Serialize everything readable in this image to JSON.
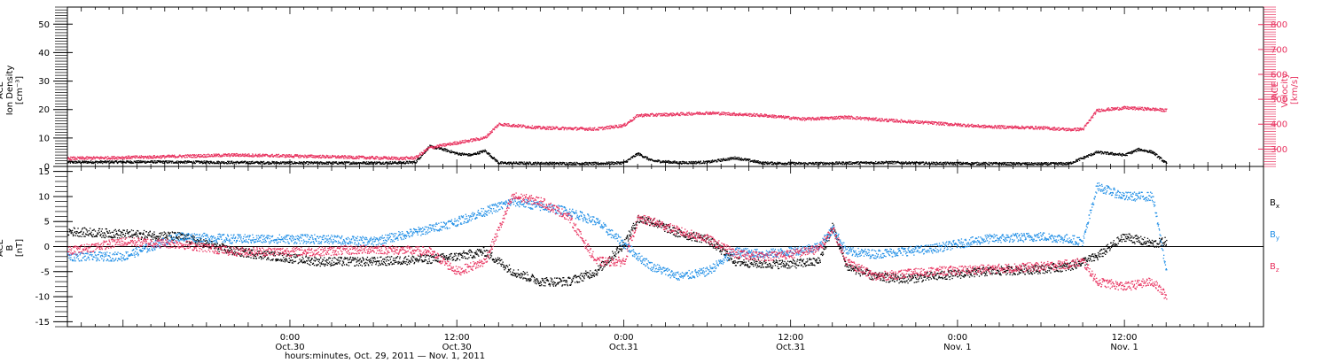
{
  "colors": {
    "black": "#000000",
    "blue": "#1f8ee6",
    "red": "#e8325f"
  },
  "xaxis": {
    "label": "hours:minutes, Oct. 29, 2011 — Nov.  1, 2011",
    "range": [
      "2011-10-29T08:00",
      "2011-11-01T22:00"
    ],
    "ticks": [
      {
        "t": "2011-10-30T00:00",
        "time": "0:00",
        "date": "Oct.30"
      },
      {
        "t": "2011-10-30T12:00",
        "time": "12:00",
        "date": "Oct.30"
      },
      {
        "t": "2011-10-31T00:00",
        "time": "0:00",
        "date": "Oct.31"
      },
      {
        "t": "2011-10-31T12:00",
        "time": "12:00",
        "date": "Oct.31"
      },
      {
        "t": "2011-11-01T00:00",
        "time": "0:00",
        "date": "Nov. 1"
      },
      {
        "t": "2011-11-01T12:00",
        "time": "12:00",
        "date": "Nov. 1"
      }
    ]
  },
  "chart_data": [
    {
      "type": "scatter",
      "panel": "top",
      "ylabel_left": [
        "ACE",
        "Ion Density",
        "[cm⁻³]"
      ],
      "ylabel_right": [
        "ACE",
        "Velocity",
        "[km/s]"
      ],
      "ylim_left": [
        0,
        56
      ],
      "ylim_right": [
        230,
        870
      ],
      "yticks_left": [
        0,
        10,
        20,
        30,
        40,
        50
      ],
      "yticks_right": [
        300,
        400,
        500,
        600,
        700,
        800
      ],
      "series": [
        {
          "color": "black",
          "axis": "left",
          "x": [
            "2011-10-29T08:00",
            "2011-10-29T14:00",
            "2011-10-29T20:00",
            "2011-10-30T02:00",
            "2011-10-30T08:00",
            "2011-10-30T09:00",
            "2011-10-30T10:00",
            "2011-10-30T11:00",
            "2011-10-30T12:00",
            "2011-10-30T13:00",
            "2011-10-30T14:00",
            "2011-10-30T15:00",
            "2011-10-30T18:00",
            "2011-10-30T22:00",
            "2011-10-31T00:00",
            "2011-10-31T01:00",
            "2011-10-31T02:00",
            "2011-10-31T04:00",
            "2011-10-31T06:00",
            "2011-10-31T08:00",
            "2011-10-31T10:00",
            "2011-10-31T13:00",
            "2011-10-31T16:00",
            "2011-10-31T19:00",
            "2011-10-31T22:00",
            "2011-11-01T02:00",
            "2011-11-01T06:00",
            "2011-11-01T08:00",
            "2011-11-01T09:00",
            "2011-11-01T10:00",
            "2011-11-01T12:00",
            "2011-11-01T13:00",
            "2011-11-01T14:00",
            "2011-11-01T15:00"
          ],
          "y": [
            1.5,
            1.6,
            1.4,
            1.2,
            1.3,
            1.5,
            7.0,
            6.0,
            4.5,
            4.0,
            5.5,
            1.2,
            1.1,
            1.0,
            1.3,
            4.5,
            2.0,
            1.3,
            1.5,
            3.0,
            1.2,
            1.0,
            1.2,
            1.4,
            1.1,
            1.0,
            0.9,
            1.0,
            3.0,
            5.0,
            4.0,
            6.0,
            5.0,
            1.0
          ]
        },
        {
          "color": "red",
          "axis": "right",
          "x": [
            "2011-10-29T08:00",
            "2011-10-29T14:00",
            "2011-10-29T20:00",
            "2011-10-30T02:00",
            "2011-10-30T08:00",
            "2011-10-30T09:00",
            "2011-10-30T10:00",
            "2011-10-30T12:00",
            "2011-10-30T14:00",
            "2011-10-30T15:00",
            "2011-10-30T18:00",
            "2011-10-30T22:00",
            "2011-10-31T00:00",
            "2011-10-31T01:00",
            "2011-10-31T04:00",
            "2011-10-31T06:00",
            "2011-10-31T10:00",
            "2011-10-31T13:00",
            "2011-10-31T16:00",
            "2011-10-31T19:00",
            "2011-10-31T22:00",
            "2011-11-01T02:00",
            "2011-11-01T06:00",
            "2011-11-01T08:00",
            "2011-11-01T09:00",
            "2011-11-01T10:00",
            "2011-11-01T12:00",
            "2011-11-01T14:00",
            "2011-11-01T15:00"
          ],
          "y": [
            262,
            268,
            276,
            270,
            262,
            265,
            305,
            325,
            345,
            400,
            385,
            380,
            395,
            435,
            440,
            445,
            435,
            420,
            428,
            415,
            405,
            390,
            385,
            378,
            380,
            455,
            465,
            460,
            455
          ]
        }
      ]
    },
    {
      "type": "scatter",
      "panel": "bottom",
      "ylabel_left": [
        "ACE",
        "B",
        "[nT]"
      ],
      "ylim": [
        -16,
        16
      ],
      "yticks": [
        -15,
        -10,
        -5,
        0,
        5,
        10,
        15
      ],
      "legend": [
        {
          "text": "B",
          "sub": "x",
          "color": "black"
        },
        {
          "text": "B",
          "sub": "y",
          "color": "blue"
        },
        {
          "text": "B",
          "sub": "z",
          "color": "red"
        }
      ],
      "series": [
        {
          "color": "black",
          "x": [
            "2011-10-29T08:00",
            "2011-10-29T12:00",
            "2011-10-29T16:00",
            "2011-10-29T20:00",
            "2011-10-30T02:00",
            "2011-10-30T06:00",
            "2011-10-30T10:00",
            "2011-10-30T12:00",
            "2011-10-30T14:00",
            "2011-10-30T16:00",
            "2011-10-30T18:00",
            "2011-10-30T20:00",
            "2011-10-30T22:00",
            "2011-10-31T00:00",
            "2011-10-31T01:00",
            "2011-10-31T02:00",
            "2011-10-31T04:00",
            "2011-10-31T06:00",
            "2011-10-31T08:00",
            "2011-10-31T10:00",
            "2011-10-31T12:00",
            "2011-10-31T14:00",
            "2011-10-31T15:00",
            "2011-10-31T16:00",
            "2011-10-31T18:00",
            "2011-10-31T20:00",
            "2011-10-31T22:00",
            "2011-11-01T02:00",
            "2011-11-01T06:00",
            "2011-11-01T08:00",
            "2011-11-01T09:00",
            "2011-11-01T10:00",
            "2011-11-01T12:00",
            "2011-11-01T14:00",
            "2011-11-01T15:00"
          ],
          "y": [
            3.0,
            2.5,
            2.0,
            -1.0,
            -3.0,
            -3.0,
            -2.5,
            -2.0,
            -1.0,
            -5.0,
            -7.0,
            -7.0,
            -5.0,
            0.5,
            5.5,
            5.0,
            2.5,
            1.5,
            -3.0,
            -3.5,
            -3.5,
            -3.0,
            4.0,
            -4.0,
            -6.0,
            -6.5,
            -6.0,
            -5.0,
            -4.5,
            -4.0,
            -3.0,
            -2.0,
            2.0,
            0.5,
            1.0
          ]
        },
        {
          "color": "blue",
          "x": [
            "2011-10-29T08:00",
            "2011-10-29T12:00",
            "2011-10-29T16:00",
            "2011-10-29T20:00",
            "2011-10-30T02:00",
            "2011-10-30T06:00",
            "2011-10-30T10:00",
            "2011-10-30T12:00",
            "2011-10-30T14:00",
            "2011-10-30T16:00",
            "2011-10-30T18:00",
            "2011-10-30T20:00",
            "2011-10-30T22:00",
            "2011-10-31T00:00",
            "2011-10-31T01:00",
            "2011-10-31T02:00",
            "2011-10-31T04:00",
            "2011-10-31T06:00",
            "2011-10-31T08:00",
            "2011-10-31T10:00",
            "2011-10-31T12:00",
            "2011-10-31T14:00",
            "2011-10-31T15:00",
            "2011-10-31T16:00",
            "2011-10-31T18:00",
            "2011-10-31T20:00",
            "2011-10-31T22:00",
            "2011-11-01T02:00",
            "2011-11-01T06:00",
            "2011-11-01T08:00",
            "2011-11-01T09:00",
            "2011-11-01T10:00",
            "2011-11-01T12:00",
            "2011-11-01T14:00",
            "2011-11-01T15:00"
          ],
          "y": [
            -2.0,
            -2.0,
            2.0,
            1.5,
            1.5,
            1.0,
            3.5,
            5.0,
            7.0,
            9.0,
            8.0,
            7.0,
            5.0,
            0.5,
            -2.0,
            -4.0,
            -6.0,
            -5.0,
            -1.0,
            -1.5,
            -1.0,
            0.0,
            3.5,
            -1.0,
            -1.5,
            -1.0,
            -0.5,
            1.5,
            2.0,
            1.5,
            1.0,
            12.0,
            10.0,
            10.0,
            -5.0
          ]
        },
        {
          "color": "red",
          "x": [
            "2011-10-29T08:00",
            "2011-10-29T12:00",
            "2011-10-29T16:00",
            "2011-10-29T20:00",
            "2011-10-30T02:00",
            "2011-10-30T06:00",
            "2011-10-30T10:00",
            "2011-10-30T12:00",
            "2011-10-30T14:00",
            "2011-10-30T16:00",
            "2011-10-30T18:00",
            "2011-10-30T20:00",
            "2011-10-30T22:00",
            "2011-10-31T00:00",
            "2011-10-31T01:00",
            "2011-10-31T02:00",
            "2011-10-31T04:00",
            "2011-10-31T06:00",
            "2011-10-31T08:00",
            "2011-10-31T10:00",
            "2011-10-31T12:00",
            "2011-10-31T14:00",
            "2011-10-31T15:00",
            "2011-10-31T16:00",
            "2011-10-31T18:00",
            "2011-10-31T20:00",
            "2011-10-31T22:00",
            "2011-11-01T02:00",
            "2011-11-01T06:00",
            "2011-11-01T08:00",
            "2011-11-01T09:00",
            "2011-11-01T10:00",
            "2011-11-01T12:00",
            "2011-11-01T14:00",
            "2011-11-01T15:00"
          ],
          "y": [
            -1.0,
            1.0,
            0.5,
            -1.0,
            -1.0,
            -0.5,
            -1.0,
            -5.0,
            -3.0,
            10.0,
            9.0,
            6.0,
            -3.0,
            -3.0,
            5.5,
            5.0,
            3.0,
            1.5,
            -1.5,
            -2.0,
            -1.5,
            -0.5,
            3.5,
            -3.0,
            -6.0,
            -5.5,
            -5.0,
            -4.5,
            -4.0,
            -3.5,
            -3.0,
            -7.0,
            -8.0,
            -7.0,
            -10.0
          ]
        }
      ]
    }
  ]
}
